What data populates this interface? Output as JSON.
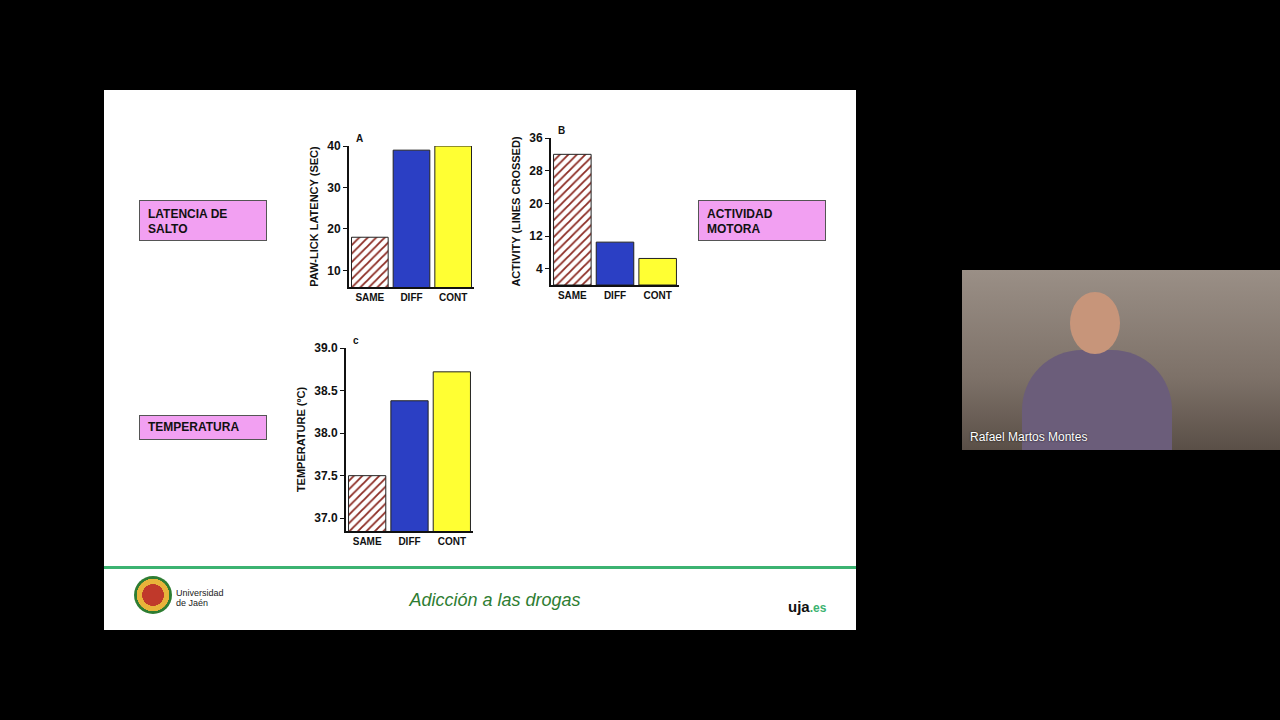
{
  "chart_data": [
    {
      "type": "bar",
      "annotations": [
        "A"
      ],
      "ylabel": "PAW-LICK LATENCY (SEC)",
      "categories": [
        "SAME",
        "DIFF",
        "CONT"
      ],
      "values": [
        18,
        39,
        40
      ],
      "colors": [
        "#8b2a22",
        "#2b3fc4",
        "#ffff33"
      ],
      "ylim": [
        6,
        40
      ],
      "yticks": [
        10,
        20,
        30,
        40
      ],
      "grid": false
    },
    {
      "type": "bar",
      "annotations": [
        "B"
      ],
      "ylabel": "ACTIVITY (LINES CROSSED)",
      "categories": [
        "SAME",
        "DIFF",
        "CONT"
      ],
      "values": [
        32,
        10.5,
        6.5
      ],
      "colors": [
        "#8b2a22",
        "#2b3fc4",
        "#ffff33"
      ],
      "ylim": [
        0,
        36
      ],
      "yticks": [
        4,
        12,
        20,
        28,
        36
      ],
      "grid": false
    },
    {
      "type": "bar",
      "annotations": [
        "c"
      ],
      "ylabel": "TEMPERATURE (ºC)",
      "categories": [
        "SAME",
        "DIFF",
        "CONT"
      ],
      "values": [
        37.5,
        38.38,
        38.72
      ],
      "colors": [
        "#8b2a22",
        "#2b3fc4",
        "#ffff33"
      ],
      "ylim": [
        36.85,
        39.0
      ],
      "yticks": [
        {
          "value": 37,
          "label": "37.0"
        },
        {
          "value": 37.5,
          "label": "37.5"
        },
        {
          "value": 38,
          "label": "38.0"
        },
        {
          "value": 38.5,
          "label": "38.5"
        },
        {
          "value": 39,
          "label": "39.0"
        }
      ],
      "grid": false
    }
  ],
  "slide": {
    "labels": [
      "LATENCIA DE SALTO",
      "ACTIVIDAD MOTORA",
      "TEMPERATURA"
    ],
    "footer": {
      "title": "Adicción a las drogas",
      "institution": "Universidad de Jaén",
      "site": "uja.es"
    }
  },
  "video": {
    "presenter": "Rafael Martos Montes"
  }
}
